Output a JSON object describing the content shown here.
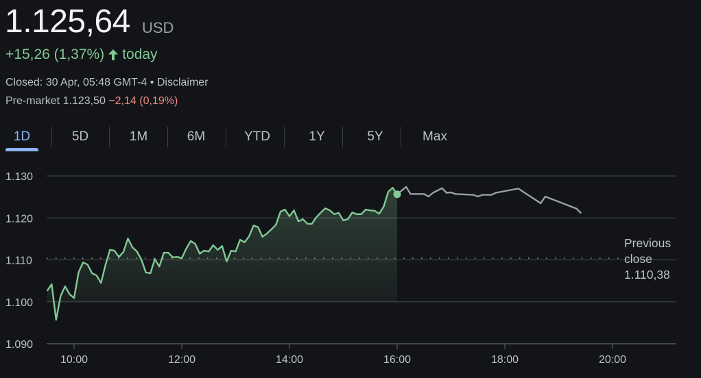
{
  "quote": {
    "price": "1.125,64",
    "currency": "USD",
    "change": "+15,26 (1,37%)",
    "change_direction": "up",
    "change_period": "today",
    "closed_text": "Closed: 30 Apr, 05:48 GMT-4",
    "separator": "•",
    "disclaimer": "Disclaimer",
    "premarket_label": "Pre-market 1.123,50",
    "premarket_change": "−2,14 (0,19%)"
  },
  "tabs": [
    {
      "label": "1D",
      "active": true
    },
    {
      "label": "5D",
      "active": false
    },
    {
      "label": "1M",
      "active": false
    },
    {
      "label": "6M",
      "active": false
    },
    {
      "label": "YTD",
      "active": false
    },
    {
      "label": "1Y",
      "active": false
    },
    {
      "label": "5Y",
      "active": false
    },
    {
      "label": "Max",
      "active": false
    }
  ],
  "previous_close": {
    "line1": "Previous",
    "line2": "close",
    "value": "1.110,38"
  },
  "colors": {
    "up": "#81c995",
    "down": "#f28b82",
    "after_hours": "#9aa0a6",
    "accent": "#8ab4f8"
  },
  "chart_data": {
    "type": "line",
    "y_ticks": [
      "1.130",
      "1.120",
      "1.110",
      "1.100",
      "1.090"
    ],
    "y_tick_values": [
      1130,
      1120,
      1110,
      1100,
      1090
    ],
    "x_ticks": [
      "10:00",
      "12:00",
      "14:00",
      "16:00",
      "18:00",
      "20:00"
    ],
    "ylim": [
      1090,
      1130
    ],
    "xlim": [
      "09:30",
      "21:00"
    ],
    "grid": true,
    "previous_close": 1110.38,
    "series": [
      {
        "segment": "regular",
        "start": "09:30",
        "interval_minutes": 5,
        "values": [
          1102.6,
          1104.2,
          1095.7,
          1101.4,
          1103.7,
          1101.8,
          1100.9,
          1107.0,
          1109.4,
          1108.9,
          1106.8,
          1106.3,
          1104.5,
          1108.8,
          1112.4,
          1112.2,
          1110.7,
          1111.9,
          1115.1,
          1113.0,
          1112.0,
          1110.1,
          1107.0,
          1106.8,
          1110.2,
          1108.4,
          1111.7,
          1111.7,
          1110.6,
          1110.7,
          1110.4,
          1112.7,
          1114.5,
          1113.8,
          1111.5,
          1112.2,
          1112.0,
          1113.5,
          1112.4,
          1113.3,
          1109.6,
          1112.2,
          1112.0,
          1114.8,
          1114.2,
          1115.6,
          1118.2,
          1117.8,
          1115.5,
          1116.3,
          1117.3,
          1118.4,
          1121.5,
          1122.0,
          1120.4,
          1121.8,
          1119.2,
          1119.7,
          1118.6,
          1118.6,
          1120.2,
          1121.3,
          1122.3,
          1121.8,
          1120.9,
          1121.2,
          1119.4,
          1119.7,
          1121.3,
          1120.9,
          1120.9,
          1122.0,
          1121.8,
          1121.7,
          1121.0,
          1122.7,
          1126.2,
          1127.2,
          1125.64
        ]
      },
      {
        "segment": "after_hours",
        "points": [
          [
            "16:00",
            1125.64
          ],
          [
            "16:10",
            1127.4
          ],
          [
            "16:15",
            1125.7
          ],
          [
            "16:30",
            1125.7
          ],
          [
            "16:35",
            1125.1
          ],
          [
            "16:40",
            1126.0
          ],
          [
            "16:50",
            1127.1
          ],
          [
            "16:55",
            1126.0
          ],
          [
            "17:00",
            1126.1
          ],
          [
            "17:05",
            1125.7
          ],
          [
            "17:25",
            1125.5
          ],
          [
            "17:30",
            1125.1
          ],
          [
            "17:35",
            1125.5
          ],
          [
            "17:45",
            1125.5
          ],
          [
            "17:50",
            1126.0
          ],
          [
            "18:15",
            1127.0
          ],
          [
            "18:40",
            1123.5
          ],
          [
            "18:45",
            1125.1
          ],
          [
            "19:20",
            1122.2
          ],
          [
            "19:25",
            1121.1
          ]
        ]
      }
    ]
  }
}
